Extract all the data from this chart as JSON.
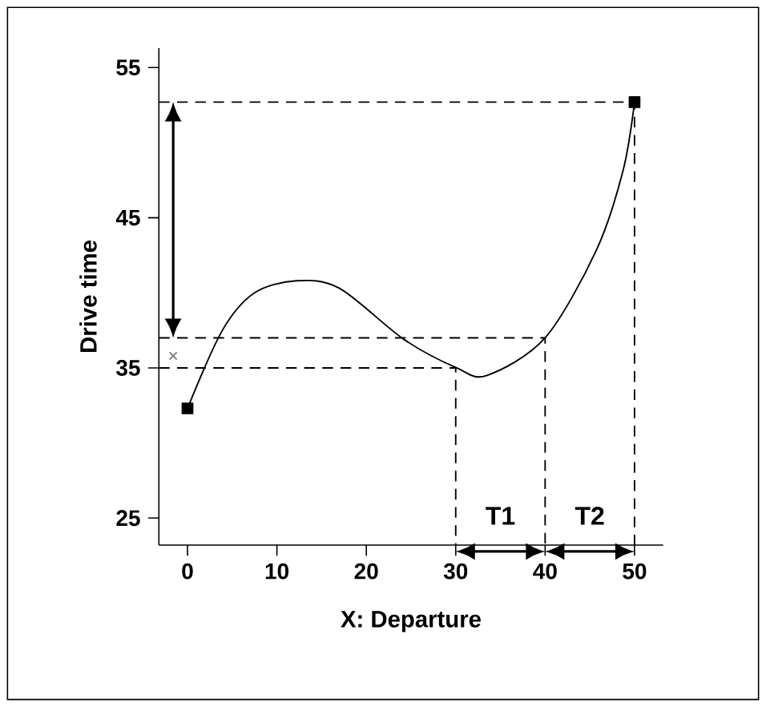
{
  "chart_data": {
    "type": "line",
    "xlabel": "X: Departure",
    "ylabel": "Drive time",
    "xlim": [
      -3.2,
      53.2
    ],
    "ylim": [
      23.2,
      56.3
    ],
    "xticks": [
      0,
      10,
      20,
      30,
      40,
      50
    ],
    "yticks": [
      25,
      35,
      45,
      55
    ],
    "grid": false,
    "series": [
      {
        "color": "#000000",
        "line_style": "solid",
        "marker": "none",
        "x": [
          0,
          3.9,
          7.5,
          12.2,
          17,
          24.2,
          30.1,
          33.5,
          40,
          45.7,
          48.7,
          50
        ],
        "values": [
          32.3,
          37.5,
          40.0,
          40.8,
          40.3,
          36.9,
          35,
          34.5,
          37,
          42.8,
          48.1,
          52.7
        ]
      },
      {
        "type": "scatter",
        "color": "#000000",
        "marker": "square",
        "x": [
          0,
          50
        ],
        "values": [
          32.3,
          52.7
        ]
      },
      {
        "type": "scatter",
        "color": "#808080",
        "marker": "cross",
        "x": [
          -1.6
        ],
        "values": [
          35.8
        ]
      },
      {
        "color": "#000000",
        "line_style": "dashed",
        "marker": "none",
        "x": [
          -3.2,
          50,
          50
        ],
        "values": [
          52.7,
          52.7,
          23.2
        ]
      },
      {
        "color": "#000000",
        "line_style": "dashed",
        "marker": "none",
        "x": [
          -3.2,
          40,
          40
        ],
        "values": [
          37,
          37,
          23.2
        ]
      },
      {
        "color": "#000000",
        "line_style": "dashed",
        "marker": "none",
        "x": [
          -3.2,
          30,
          30
        ],
        "values": [
          35,
          35,
          23.2
        ]
      }
    ],
    "annotations": [
      "T1",
      "T2"
    ]
  }
}
